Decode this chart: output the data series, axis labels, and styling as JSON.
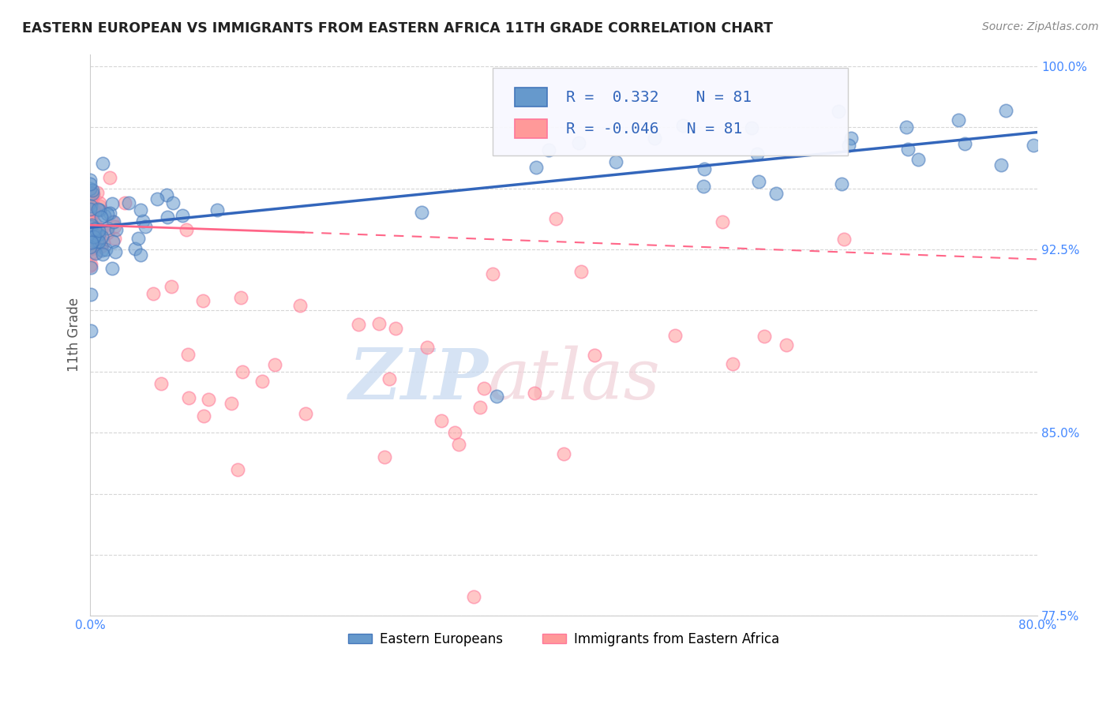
{
  "title": "EASTERN EUROPEAN VS IMMIGRANTS FROM EASTERN AFRICA 11TH GRADE CORRELATION CHART",
  "source_text": "Source: ZipAtlas.com",
  "ylabel": "11th Grade",
  "x_min": 0.0,
  "x_max": 0.8,
  "y_min": 0.775,
  "y_max": 1.005,
  "blue_color": "#6699CC",
  "pink_color": "#FF9999",
  "blue_edge_color": "#4477BB",
  "pink_edge_color": "#FF7799",
  "blue_line_color": "#3366BB",
  "pink_line_color": "#FF6688",
  "legend_R_blue": "0.332",
  "legend_N_blue": "81",
  "legend_R_pink": "-0.046",
  "legend_N_pink": "81",
  "legend_label_blue": "Eastern Europeans",
  "legend_label_pink": "Immigrants from Eastern Africa",
  "watermark": "ZIPatlas",
  "watermark_blue": "#C5D8F0",
  "watermark_pink": "#F0D0D8",
  "background_color": "#FFFFFF",
  "grid_color": "#BBBBBB",
  "title_color": "#222222",
  "source_color": "#888888",
  "ylabel_color": "#555555",
  "tick_color": "#4488FF",
  "y_ticks": [
    0.775,
    0.8,
    0.825,
    0.85,
    0.875,
    0.9,
    0.925,
    0.95,
    0.975,
    1.0
  ],
  "y_tick_labels": [
    "77.5%",
    "",
    "",
    "85.0%",
    "",
    "",
    "92.5%",
    "",
    "",
    "100.0%"
  ],
  "x_ticks": [
    0.0,
    0.1,
    0.2,
    0.3,
    0.4,
    0.5,
    0.6,
    0.7,
    0.8
  ],
  "x_tick_labels": [
    "0.0%",
    "",
    "",
    "",
    "",
    "",
    "",
    "",
    "80.0%"
  ]
}
